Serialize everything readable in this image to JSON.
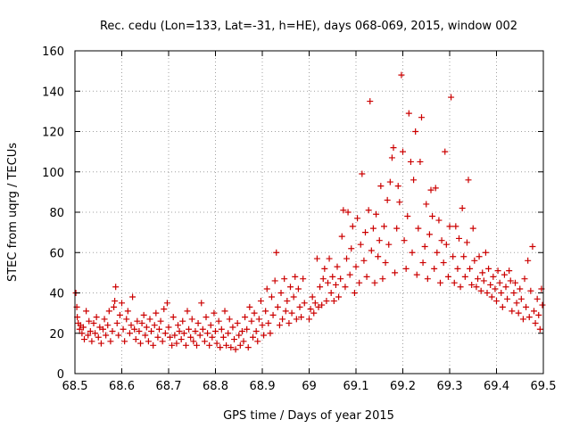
{
  "chart_data": {
    "type": "scatter",
    "title": "Rec. cedu (Lon=133, Lat=-31, h=HE), days 068-069, 2015, window 002",
    "xlabel": "GPS time / Days of year 2015",
    "ylabel": "STEC from uqrg / TECUs",
    "xlim": [
      68.5,
      69.5
    ],
    "ylim": [
      0,
      160
    ],
    "xticks": [
      68.5,
      68.6,
      68.7,
      68.8,
      68.9,
      69.0,
      69.1,
      69.2,
      69.3,
      69.4,
      69.5
    ],
    "xtick_labels": [
      "68.5",
      "68.6",
      "68.7",
      "68.8",
      "68.9",
      "69",
      "69.1",
      "69.2",
      "69.3",
      "69.4",
      "69.5"
    ],
    "yticks": [
      0,
      20,
      40,
      60,
      80,
      100,
      120,
      140,
      160
    ],
    "ytick_labels": [
      "0",
      "20",
      "40",
      "60",
      "80",
      "100",
      "120",
      "140",
      "160"
    ],
    "grid": true,
    "marker": "+",
    "color": "#cc0000",
    "points": [
      [
        68.502,
        40
      ],
      [
        68.504,
        33
      ],
      [
        68.505,
        28
      ],
      [
        68.507,
        25
      ],
      [
        68.51,
        22
      ],
      [
        68.512,
        24
      ],
      [
        68.515,
        20
      ],
      [
        68.518,
        23
      ],
      [
        68.52,
        17
      ],
      [
        68.524,
        31
      ],
      [
        68.528,
        19
      ],
      [
        68.53,
        26
      ],
      [
        68.533,
        21
      ],
      [
        68.536,
        16
      ],
      [
        68.54,
        25
      ],
      [
        68.543,
        20
      ],
      [
        68.546,
        28
      ],
      [
        68.55,
        18
      ],
      [
        68.553,
        23
      ],
      [
        68.556,
        15
      ],
      [
        68.56,
        22
      ],
      [
        68.563,
        27
      ],
      [
        68.566,
        19
      ],
      [
        68.57,
        24
      ],
      [
        68.573,
        31
      ],
      [
        68.576,
        16
      ],
      [
        68.58,
        21
      ],
      [
        68.583,
        33
      ],
      [
        68.585,
        36
      ],
      [
        68.587,
        43
      ],
      [
        68.59,
        25
      ],
      [
        68.593,
        19
      ],
      [
        68.596,
        29
      ],
      [
        68.6,
        35
      ],
      [
        68.603,
        22
      ],
      [
        68.606,
        16
      ],
      [
        68.61,
        27
      ],
      [
        68.613,
        31
      ],
      [
        68.617,
        20
      ],
      [
        68.62,
        24
      ],
      [
        68.623,
        38
      ],
      [
        68.627,
        22
      ],
      [
        68.63,
        17
      ],
      [
        68.633,
        26
      ],
      [
        68.637,
        21
      ],
      [
        68.64,
        15
      ],
      [
        68.643,
        25
      ],
      [
        68.647,
        29
      ],
      [
        68.65,
        19
      ],
      [
        68.653,
        23
      ],
      [
        68.657,
        16
      ],
      [
        68.66,
        27
      ],
      [
        68.663,
        21
      ],
      [
        68.667,
        14
      ],
      [
        68.67,
        24
      ],
      [
        68.673,
        30
      ],
      [
        68.677,
        18
      ],
      [
        68.68,
        22
      ],
      [
        68.683,
        26
      ],
      [
        68.687,
        16
      ],
      [
        68.69,
        32
      ],
      [
        68.693,
        20
      ],
      [
        68.697,
        35
      ],
      [
        68.7,
        23
      ],
      [
        68.703,
        18
      ],
      [
        68.707,
        14
      ],
      [
        68.71,
        28
      ],
      [
        68.713,
        19
      ],
      [
        68.717,
        15
      ],
      [
        68.72,
        24
      ],
      [
        68.723,
        21
      ],
      [
        68.727,
        17
      ],
      [
        68.73,
        26
      ],
      [
        68.733,
        20
      ],
      [
        68.737,
        14
      ],
      [
        68.74,
        31
      ],
      [
        68.743,
        22
      ],
      [
        68.747,
        18
      ],
      [
        68.75,
        27
      ],
      [
        68.753,
        16
      ],
      [
        68.757,
        21
      ],
      [
        68.76,
        14
      ],
      [
        68.763,
        25
      ],
      [
        68.767,
        19
      ],
      [
        68.77,
        35
      ],
      [
        68.773,
        22
      ],
      [
        68.777,
        16
      ],
      [
        68.78,
        28
      ],
      [
        68.783,
        20
      ],
      [
        68.787,
        14
      ],
      [
        68.79,
        24
      ],
      [
        68.793,
        18
      ],
      [
        68.797,
        30
      ],
      [
        68.8,
        21
      ],
      [
        68.803,
        15
      ],
      [
        68.807,
        26
      ],
      [
        68.81,
        13
      ],
      [
        68.813,
        22
      ],
      [
        68.817,
        18
      ],
      [
        68.82,
        31
      ],
      [
        68.823,
        14
      ],
      [
        68.827,
        20
      ],
      [
        68.83,
        27
      ],
      [
        68.833,
        13
      ],
      [
        68.837,
        23
      ],
      [
        68.84,
        17
      ],
      [
        68.843,
        12
      ],
      [
        68.847,
        25
      ],
      [
        68.85,
        19
      ],
      [
        68.853,
        14
      ],
      [
        68.857,
        21
      ],
      [
        68.86,
        16
      ],
      [
        68.863,
        28
      ],
      [
        68.867,
        22
      ],
      [
        68.87,
        13
      ],
      [
        68.873,
        33
      ],
      [
        68.877,
        26
      ],
      [
        68.88,
        18
      ],
      [
        68.883,
        30
      ],
      [
        68.887,
        21
      ],
      [
        68.89,
        16
      ],
      [
        68.893,
        27
      ],
      [
        68.897,
        36
      ],
      [
        68.9,
        24
      ],
      [
        68.903,
        19
      ],
      [
        68.907,
        31
      ],
      [
        68.91,
        42
      ],
      [
        68.913,
        25
      ],
      [
        68.917,
        20
      ],
      [
        68.92,
        38
      ],
      [
        68.923,
        29
      ],
      [
        68.927,
        46
      ],
      [
        68.93,
        60
      ],
      [
        68.933,
        33
      ],
      [
        68.937,
        24
      ],
      [
        68.94,
        40
      ],
      [
        68.943,
        27
      ],
      [
        68.947,
        47
      ],
      [
        68.95,
        31
      ],
      [
        68.953,
        36
      ],
      [
        68.957,
        25
      ],
      [
        68.96,
        43
      ],
      [
        68.963,
        30
      ],
      [
        68.967,
        38
      ],
      [
        68.97,
        48
      ],
      [
        68.973,
        27
      ],
      [
        68.977,
        42
      ],
      [
        68.98,
        33
      ],
      [
        68.983,
        28
      ],
      [
        68.987,
        47
      ],
      [
        68.99,
        35
      ],
      [
        69.0,
        27
      ],
      [
        69.003,
        32
      ],
      [
        69.007,
        38
      ],
      [
        69.01,
        30
      ],
      [
        69.013,
        35
      ],
      [
        69.017,
        57
      ],
      [
        69.02,
        33
      ],
      [
        69.023,
        43
      ],
      [
        69.027,
        34
      ],
      [
        69.03,
        47
      ],
      [
        69.033,
        52
      ],
      [
        69.037,
        36
      ],
      [
        69.04,
        45
      ],
      [
        69.043,
        57
      ],
      [
        69.047,
        40
      ],
      [
        69.05,
        48
      ],
      [
        69.053,
        36
      ],
      [
        69.057,
        44
      ],
      [
        69.06,
        53
      ],
      [
        69.063,
        38
      ],
      [
        69.067,
        47
      ],
      [
        69.07,
        68
      ],
      [
        69.073,
        81
      ],
      [
        69.077,
        43
      ],
      [
        69.08,
        57
      ],
      [
        69.083,
        80
      ],
      [
        69.087,
        49
      ],
      [
        69.09,
        62
      ],
      [
        69.093,
        73
      ],
      [
        69.097,
        40
      ],
      [
        69.1,
        53
      ],
      [
        69.103,
        77
      ],
      [
        69.107,
        45
      ],
      [
        69.11,
        64
      ],
      [
        69.113,
        99
      ],
      [
        69.117,
        56
      ],
      [
        69.12,
        70
      ],
      [
        69.123,
        48
      ],
      [
        69.127,
        81
      ],
      [
        69.13,
        135
      ],
      [
        69.133,
        61
      ],
      [
        69.137,
        72
      ],
      [
        69.14,
        45
      ],
      [
        69.143,
        79
      ],
      [
        69.147,
        58
      ],
      [
        69.15,
        66
      ],
      [
        69.153,
        93
      ],
      [
        69.157,
        47
      ],
      [
        69.16,
        73
      ],
      [
        69.163,
        55
      ],
      [
        69.167,
        86
      ],
      [
        69.17,
        64
      ],
      [
        69.173,
        95
      ],
      [
        69.177,
        107
      ],
      [
        69.18,
        112
      ],
      [
        69.183,
        50
      ],
      [
        69.187,
        72
      ],
      [
        69.19,
        93
      ],
      [
        69.193,
        85
      ],
      [
        69.197,
        148
      ],
      [
        69.2,
        110
      ],
      [
        69.203,
        66
      ],
      [
        69.207,
        52
      ],
      [
        69.21,
        78
      ],
      [
        69.213,
        129
      ],
      [
        69.217,
        105
      ],
      [
        69.22,
        60
      ],
      [
        69.223,
        96
      ],
      [
        69.227,
        120
      ],
      [
        69.23,
        49
      ],
      [
        69.233,
        72
      ],
      [
        69.237,
        105
      ],
      [
        69.24,
        127
      ],
      [
        69.243,
        55
      ],
      [
        69.247,
        63
      ],
      [
        69.25,
        84
      ],
      [
        69.253,
        47
      ],
      [
        69.257,
        69
      ],
      [
        69.26,
        91
      ],
      [
        69.263,
        78
      ],
      [
        69.267,
        52
      ],
      [
        69.27,
        92
      ],
      [
        69.273,
        60
      ],
      [
        69.277,
        76
      ],
      [
        69.28,
        45
      ],
      [
        69.283,
        66
      ],
      [
        69.287,
        55
      ],
      [
        69.29,
        110
      ],
      [
        69.293,
        64
      ],
      [
        69.297,
        48
      ],
      [
        69.3,
        73
      ],
      [
        69.303,
        137
      ],
      [
        69.307,
        58
      ],
      [
        69.31,
        45
      ],
      [
        69.313,
        73
      ],
      [
        69.317,
        52
      ],
      [
        69.32,
        67
      ],
      [
        69.323,
        43
      ],
      [
        69.327,
        82
      ],
      [
        69.33,
        58
      ],
      [
        69.333,
        48
      ],
      [
        69.337,
        65
      ],
      [
        69.34,
        96
      ],
      [
        69.343,
        52
      ],
      [
        69.347,
        44
      ],
      [
        69.35,
        72
      ],
      [
        69.353,
        56
      ],
      [
        69.357,
        43
      ],
      [
        69.36,
        47
      ],
      [
        69.363,
        58
      ],
      [
        69.367,
        41
      ],
      [
        69.37,
        50
      ],
      [
        69.373,
        46
      ],
      [
        69.377,
        60
      ],
      [
        69.38,
        40
      ],
      [
        69.383,
        52
      ],
      [
        69.387,
        44
      ],
      [
        69.39,
        38
      ],
      [
        69.393,
        48
      ],
      [
        69.397,
        42
      ],
      [
        69.4,
        36
      ],
      [
        69.403,
        51
      ],
      [
        69.407,
        45
      ],
      [
        69.41,
        40
      ],
      [
        69.413,
        33
      ],
      [
        69.417,
        49
      ],
      [
        69.42,
        43
      ],
      [
        69.423,
        37
      ],
      [
        69.427,
        51
      ],
      [
        69.43,
        46
      ],
      [
        69.433,
        31
      ],
      [
        69.437,
        40
      ],
      [
        69.44,
        45
      ],
      [
        69.443,
        35
      ],
      [
        69.447,
        30
      ],
      [
        69.45,
        42
      ],
      [
        69.453,
        37
      ],
      [
        69.457,
        27
      ],
      [
        69.46,
        47
      ],
      [
        69.463,
        33
      ],
      [
        69.467,
        56
      ],
      [
        69.47,
        28
      ],
      [
        69.473,
        41
      ],
      [
        69.477,
        63
      ],
      [
        69.48,
        31
      ],
      [
        69.483,
        25
      ],
      [
        69.487,
        37
      ],
      [
        69.49,
        29
      ],
      [
        69.493,
        22
      ],
      [
        69.496,
        42
      ],
      [
        69.498,
        34
      ]
    ]
  }
}
